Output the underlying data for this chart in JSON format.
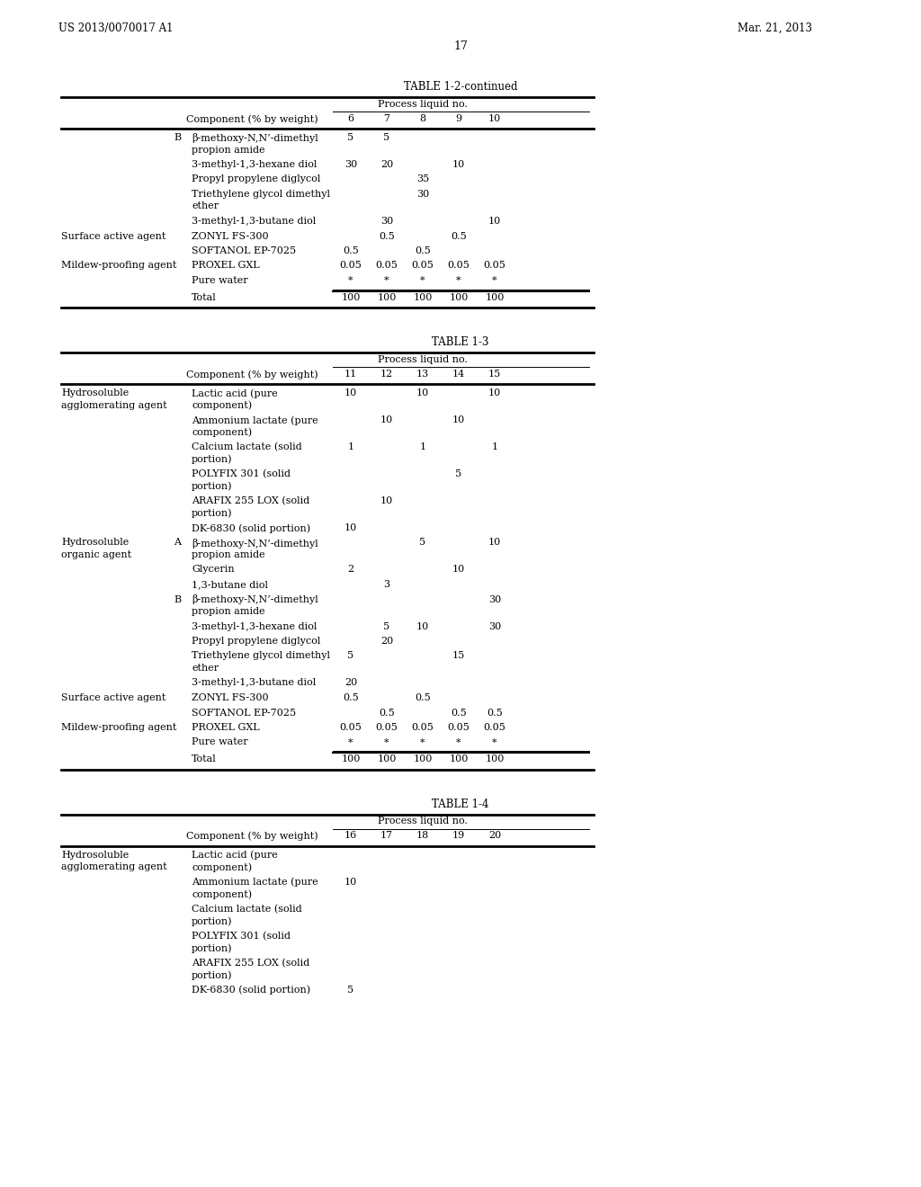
{
  "title_left": "US 2013/0070017 A1",
  "title_right": "Mar. 21, 2013",
  "page_number": "17",
  "background_color": "#ffffff",
  "table1_title": "TABLE 1-2-continued",
  "table1_header_span": "Process liquid no.",
  "table1_col_header": "Component (% by weight)",
  "table1_cols": [
    "6",
    "7",
    "8",
    "9",
    "10"
  ],
  "table1_rows": [
    {
      "left1": "",
      "left2": "B",
      "left3": "β-methoxy-N,N’-dimethyl\npropion amide",
      "vals": [
        "5",
        "5",
        "",
        "",
        ""
      ]
    },
    {
      "left1": "",
      "left2": "",
      "left3": "3-methyl-1,3-hexane diol",
      "vals": [
        "30",
        "20",
        "",
        "10",
        ""
      ]
    },
    {
      "left1": "",
      "left2": "",
      "left3": "Propyl propylene diglycol",
      "vals": [
        "",
        "",
        "35",
        "",
        ""
      ]
    },
    {
      "left1": "",
      "left2": "",
      "left3": "Triethylene glycol dimethyl\nether",
      "vals": [
        "",
        "",
        "30",
        "",
        ""
      ]
    },
    {
      "left1": "",
      "left2": "",
      "left3": "3-methyl-1,3-butane diol",
      "vals": [
        "",
        "30",
        "",
        "",
        "10"
      ]
    },
    {
      "left1": "Surface active agent",
      "left2": "",
      "left3": "ZONYL FS-300",
      "vals": [
        "",
        "0.5",
        "",
        "0.5",
        ""
      ]
    },
    {
      "left1": "",
      "left2": "",
      "left3": "SOFTANOL EP-7025",
      "vals": [
        "0.5",
        "",
        "0.5",
        "",
        ""
      ]
    },
    {
      "left1": "Mildew-proofing agent",
      "left2": "",
      "left3": "PROXEL GXL",
      "vals": [
        "0.05",
        "0.05",
        "0.05",
        "0.05",
        "0.05"
      ]
    },
    {
      "left1": "",
      "left2": "",
      "left3": "Pure water",
      "vals": [
        "*",
        "*",
        "*",
        "*",
        "*"
      ]
    },
    {
      "left1": "",
      "left2": "",
      "left3": "Total",
      "vals": [
        "100",
        "100",
        "100",
        "100",
        "100"
      ]
    }
  ],
  "table2_title": "TABLE 1-3",
  "table2_header_span": "Process liquid no.",
  "table2_col_header": "Component (% by weight)",
  "table2_cols": [
    "11",
    "12",
    "13",
    "14",
    "15"
  ],
  "table2_rows": [
    {
      "left1": "Hydrosoluble\nagglomerating agent",
      "left2": "",
      "left3": "Lactic acid (pure\ncomponent)",
      "vals": [
        "10",
        "",
        "10",
        "",
        "10"
      ]
    },
    {
      "left1": "",
      "left2": "",
      "left3": "Ammonium lactate (pure\ncomponent)",
      "vals": [
        "",
        "10",
        "",
        "10",
        ""
      ]
    },
    {
      "left1": "",
      "left2": "",
      "left3": "Calcium lactate (solid\nportion)",
      "vals": [
        "1",
        "",
        "1",
        "",
        "1"
      ]
    },
    {
      "left1": "",
      "left2": "",
      "left3": "POLYFIX 301 (solid\nportion)",
      "vals": [
        "",
        "",
        "",
        "5",
        ""
      ]
    },
    {
      "left1": "",
      "left2": "",
      "left3": "ARAFIX 255 LOX (solid\nportion)",
      "vals": [
        "",
        "10",
        "",
        "",
        ""
      ]
    },
    {
      "left1": "",
      "left2": "",
      "left3": "DK-6830 (solid portion)",
      "vals": [
        "10",
        "",
        "",
        "",
        ""
      ]
    },
    {
      "left1": "Hydrosoluble\norganic agent",
      "left2": "A",
      "left3": "β-methoxy-N,N’-dimethyl\npropion amide",
      "vals": [
        "",
        "",
        "5",
        "",
        "10"
      ]
    },
    {
      "left1": "",
      "left2": "",
      "left3": "Glycerin",
      "vals": [
        "2",
        "",
        "",
        "10",
        ""
      ]
    },
    {
      "left1": "",
      "left2": "",
      "left3": "1,3-butane diol",
      "vals": [
        "",
        "3",
        "",
        "",
        ""
      ]
    },
    {
      "left1": "",
      "left2": "B",
      "left3": "β-methoxy-N,N’-dimethyl\npropion amide",
      "vals": [
        "",
        "",
        "",
        "",
        "30"
      ]
    },
    {
      "left1": "",
      "left2": "",
      "left3": "3-methyl-1,3-hexane diol",
      "vals": [
        "",
        "5",
        "10",
        "",
        "30"
      ]
    },
    {
      "left1": "",
      "left2": "",
      "left3": "Propyl propylene diglycol",
      "vals": [
        "",
        "20",
        "",
        "",
        ""
      ]
    },
    {
      "left1": "",
      "left2": "",
      "left3": "Triethylene glycol dimethyl\nether",
      "vals": [
        "5",
        "",
        "",
        "15",
        ""
      ]
    },
    {
      "left1": "",
      "left2": "",
      "left3": "3-methyl-1,3-butane diol",
      "vals": [
        "20",
        "",
        "",
        "",
        ""
      ]
    },
    {
      "left1": "Surface active agent",
      "left2": "",
      "left3": "ZONYL FS-300",
      "vals": [
        "0.5",
        "",
        "0.5",
        "",
        ""
      ]
    },
    {
      "left1": "",
      "left2": "",
      "left3": "SOFTANOL EP-7025",
      "vals": [
        "",
        "0.5",
        "",
        "0.5",
        "0.5"
      ]
    },
    {
      "left1": "Mildew-proofing agent",
      "left2": "",
      "left3": "PROXEL GXL",
      "vals": [
        "0.05",
        "0.05",
        "0.05",
        "0.05",
        "0.05"
      ]
    },
    {
      "left1": "",
      "left2": "",
      "left3": "Pure water",
      "vals": [
        "*",
        "*",
        "*",
        "*",
        "*"
      ]
    },
    {
      "left1": "",
      "left2": "",
      "left3": "Total",
      "vals": [
        "100",
        "100",
        "100",
        "100",
        "100"
      ]
    }
  ],
  "table3_title": "TABLE 1-4",
  "table3_header_span": "Process liquid no.",
  "table3_col_header": "Component (% by weight)",
  "table3_cols": [
    "16",
    "17",
    "18",
    "19",
    "20"
  ],
  "table3_rows": [
    {
      "left1": "Hydrosoluble\nagglomerating agent",
      "left2": "",
      "left3": "Lactic acid (pure\ncomponent)",
      "vals": [
        "",
        "",
        "",
        "",
        ""
      ]
    },
    {
      "left1": "",
      "left2": "",
      "left3": "Ammonium lactate (pure\ncomponent)",
      "vals": [
        "10",
        "",
        "",
        "",
        ""
      ]
    },
    {
      "left1": "",
      "left2": "",
      "left3": "Calcium lactate (solid\nportion)",
      "vals": [
        "",
        "",
        "",
        "",
        ""
      ]
    },
    {
      "left1": "",
      "left2": "",
      "left3": "POLYFIX 301 (solid\nportion)",
      "vals": [
        "",
        "",
        "",
        "",
        ""
      ]
    },
    {
      "left1": "",
      "left2": "",
      "left3": "ARAFIX 255 LOX (solid\nportion)",
      "vals": [
        "",
        "",
        "",
        "",
        ""
      ]
    },
    {
      "left1": "",
      "left2": "",
      "left3": "DK-6830 (solid portion)",
      "vals": [
        "5",
        "",
        "",
        "",
        ""
      ]
    }
  ]
}
